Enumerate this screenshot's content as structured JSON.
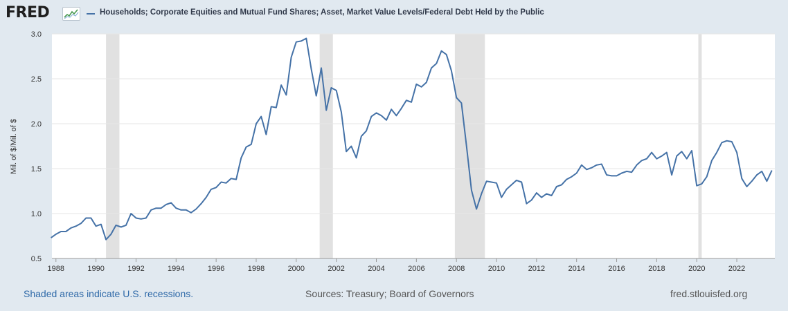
{
  "header": {
    "logo_text": "FRED",
    "logo_icon": "graph-icon"
  },
  "colors": {
    "page_background": "#e1e9f0",
    "plot_background": "#ffffff",
    "series_line": "#4572a7",
    "recession_shade": "#e1e1e1",
    "gridline": "#e6e6e6",
    "footer_link": "#2e69a8"
  },
  "footer": {
    "note": "Shaded areas indicate U.S. recessions.",
    "sources": "Sources: Treasury; Board of Governors",
    "site": "fred.stlouisfed.org"
  },
  "chart_data": {
    "type": "line",
    "title": "",
    "xlabel": "",
    "ylabel": "Mil. of $/Mil. of $",
    "legend_position": "top-left",
    "grid": true,
    "xlim": [
      1987.8,
      2023.9
    ],
    "ylim": [
      0.5,
      3.0
    ],
    "x_ticks": [
      1988,
      1990,
      1992,
      1994,
      1996,
      1998,
      2000,
      2002,
      2004,
      2006,
      2008,
      2010,
      2012,
      2014,
      2016,
      2018,
      2020,
      2022
    ],
    "x_tick_labels": [
      "1988",
      "1990",
      "1992",
      "1994",
      "1996",
      "1998",
      "2000",
      "2002",
      "2004",
      "2006",
      "2008",
      "2010",
      "2012",
      "2014",
      "2016",
      "2018",
      "2020",
      "2022"
    ],
    "y_ticks": [
      0.5,
      1.0,
      1.5,
      2.0,
      2.5,
      3.0
    ],
    "y_tick_labels": [
      "0.5",
      "1.0",
      "1.5",
      "2.0",
      "2.5",
      "3.0"
    ],
    "recessions": [
      {
        "start": 1990.5,
        "end": 1991.17
      },
      {
        "start": 2001.17,
        "end": 2001.83
      },
      {
        "start": 2007.92,
        "end": 2009.42
      },
      {
        "start": 2020.08,
        "end": 2020.25
      }
    ],
    "series": [
      {
        "name": "Households; Corporate Equities and Mutual Fund Shares; Asset, Market Value Levels/Federal Debt Held by the Public",
        "x": [
          1987.75,
          1988.0,
          1988.25,
          1988.5,
          1988.75,
          1989.0,
          1989.25,
          1989.5,
          1989.75,
          1990.0,
          1990.25,
          1990.5,
          1990.75,
          1991.0,
          1991.25,
          1991.5,
          1991.75,
          1992.0,
          1992.25,
          1992.5,
          1992.75,
          1993.0,
          1993.25,
          1993.5,
          1993.75,
          1994.0,
          1994.25,
          1994.5,
          1994.75,
          1995.0,
          1995.25,
          1995.5,
          1995.75,
          1996.0,
          1996.25,
          1996.5,
          1996.75,
          1997.0,
          1997.25,
          1997.5,
          1997.75,
          1998.0,
          1998.25,
          1998.5,
          1998.75,
          1999.0,
          1999.25,
          1999.5,
          1999.75,
          2000.0,
          2000.25,
          2000.5,
          2000.75,
          2001.0,
          2001.25,
          2001.5,
          2001.75,
          2002.0,
          2002.25,
          2002.5,
          2002.75,
          2003.0,
          2003.25,
          2003.5,
          2003.75,
          2004.0,
          2004.25,
          2004.5,
          2004.75,
          2005.0,
          2005.25,
          2005.5,
          2005.75,
          2006.0,
          2006.25,
          2006.5,
          2006.75,
          2007.0,
          2007.25,
          2007.5,
          2007.75,
          2008.0,
          2008.25,
          2008.5,
          2008.75,
          2009.0,
          2009.25,
          2009.5,
          2009.75,
          2010.0,
          2010.25,
          2010.5,
          2010.75,
          2011.0,
          2011.25,
          2011.5,
          2011.75,
          2012.0,
          2012.25,
          2012.5,
          2012.75,
          2013.0,
          2013.25,
          2013.5,
          2013.75,
          2014.0,
          2014.25,
          2014.5,
          2014.75,
          2015.0,
          2015.25,
          2015.5,
          2015.75,
          2016.0,
          2016.25,
          2016.5,
          2016.75,
          2017.0,
          2017.25,
          2017.5,
          2017.75,
          2018.0,
          2018.25,
          2018.5,
          2018.75,
          2019.0,
          2019.25,
          2019.5,
          2019.75,
          2020.0,
          2020.25,
          2020.5,
          2020.75,
          2021.0,
          2021.25,
          2021.5,
          2021.75,
          2022.0,
          2022.25,
          2022.5,
          2022.75,
          2023.0,
          2023.25,
          2023.5,
          2023.75
        ],
        "values": [
          0.73,
          0.77,
          0.8,
          0.8,
          0.84,
          0.86,
          0.89,
          0.95,
          0.95,
          0.86,
          0.88,
          0.71,
          0.77,
          0.87,
          0.85,
          0.87,
          1.0,
          0.95,
          0.94,
          0.95,
          1.04,
          1.06,
          1.06,
          1.1,
          1.12,
          1.06,
          1.04,
          1.04,
          1.01,
          1.05,
          1.11,
          1.18,
          1.27,
          1.29,
          1.35,
          1.34,
          1.39,
          1.38,
          1.62,
          1.74,
          1.77,
          2.0,
          2.08,
          1.88,
          2.19,
          2.18,
          2.43,
          2.32,
          2.74,
          2.91,
          2.92,
          2.95,
          2.61,
          2.31,
          2.62,
          2.15,
          2.4,
          2.37,
          2.13,
          1.69,
          1.75,
          1.62,
          1.86,
          1.92,
          2.08,
          2.12,
          2.09,
          2.04,
          2.16,
          2.09,
          2.17,
          2.26,
          2.24,
          2.44,
          2.41,
          2.46,
          2.62,
          2.67,
          2.81,
          2.77,
          2.59,
          2.29,
          2.23,
          1.76,
          1.26,
          1.05,
          1.22,
          1.36,
          1.35,
          1.34,
          1.18,
          1.27,
          1.32,
          1.37,
          1.35,
          1.11,
          1.15,
          1.23,
          1.18,
          1.22,
          1.2,
          1.3,
          1.32,
          1.38,
          1.41,
          1.45,
          1.54,
          1.49,
          1.51,
          1.54,
          1.55,
          1.43,
          1.42,
          1.42,
          1.45,
          1.47,
          1.46,
          1.54,
          1.59,
          1.61,
          1.68,
          1.61,
          1.64,
          1.68,
          1.43,
          1.64,
          1.69,
          1.61,
          1.7,
          1.31,
          1.33,
          1.41,
          1.59,
          1.68,
          1.79,
          1.81,
          1.8,
          1.68,
          1.39,
          1.3,
          1.36,
          1.43,
          1.47,
          1.36,
          1.48
        ]
      }
    ]
  }
}
